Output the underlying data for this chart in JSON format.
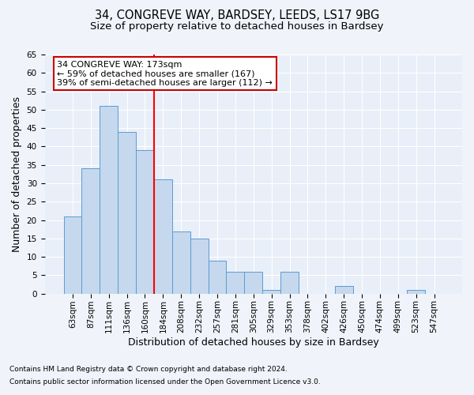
{
  "title1": "34, CONGREVE WAY, BARDSEY, LEEDS, LS17 9BG",
  "title2": "Size of property relative to detached houses in Bardsey",
  "xlabel": "Distribution of detached houses by size in Bardsey",
  "ylabel": "Number of detached properties",
  "categories": [
    "63sqm",
    "87sqm",
    "111sqm",
    "136sqm",
    "160sqm",
    "184sqm",
    "208sqm",
    "232sqm",
    "257sqm",
    "281sqm",
    "305sqm",
    "329sqm",
    "353sqm",
    "378sqm",
    "402sqm",
    "426sqm",
    "450sqm",
    "474sqm",
    "499sqm",
    "523sqm",
    "547sqm"
  ],
  "values": [
    21,
    34,
    51,
    44,
    39,
    31,
    17,
    15,
    9,
    6,
    6,
    1,
    6,
    0,
    0,
    2,
    0,
    0,
    0,
    1,
    0
  ],
  "bar_color": "#c5d8ed",
  "bar_edge_color": "#5b9bd5",
  "ylim": [
    0,
    65
  ],
  "yticks": [
    0,
    5,
    10,
    15,
    20,
    25,
    30,
    35,
    40,
    45,
    50,
    55,
    60,
    65
  ],
  "annotation_line1": "34 CONGREVE WAY: 173sqm",
  "annotation_line2": "← 59% of detached houses are smaller (167)",
  "annotation_line3": "39% of semi-detached houses are larger (112) →",
  "annotation_box_color": "#ffffff",
  "annotation_box_edge": "#cc0000",
  "footnote1": "Contains HM Land Registry data © Crown copyright and database right 2024.",
  "footnote2": "Contains public sector information licensed under the Open Government Licence v3.0.",
  "bg_color": "#f0f4fa",
  "plot_bg_color": "#e8eff8",
  "grid_color": "#ffffff",
  "title1_fontsize": 10.5,
  "title2_fontsize": 9.5,
  "tick_fontsize": 7.5,
  "label_fontsize": 9,
  "footnote_fontsize": 6.5
}
